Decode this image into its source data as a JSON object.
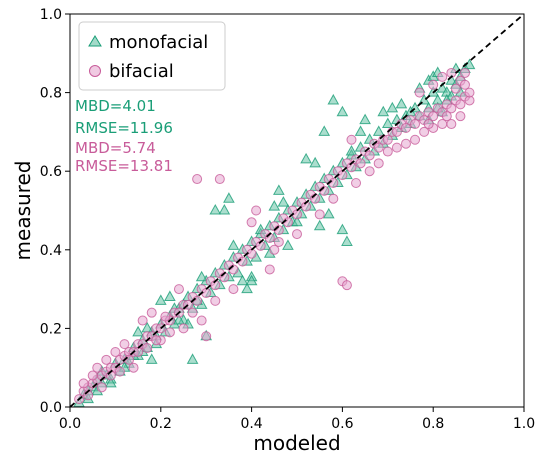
{
  "chart_data": {
    "type": "scatter",
    "title": "",
    "xlabel": "modeled",
    "ylabel": "measured",
    "xlim": [
      0.0,
      1.0
    ],
    "ylim": [
      0.0,
      1.0
    ],
    "xticks": [
      "0.0",
      "0.2",
      "0.4",
      "0.6",
      "0.8",
      "1.0"
    ],
    "yticks": [
      "0.0",
      "0.2",
      "0.4",
      "0.6",
      "0.8",
      "1.0"
    ],
    "grid": false,
    "legend_position": "top-left",
    "reference_line": {
      "style": "dashed",
      "color": "#000000",
      "x": [
        0.0,
        1.0
      ],
      "y": [
        0.0,
        1.0
      ]
    },
    "series": [
      {
        "name": "monofacial",
        "marker": "triangle",
        "color": "#1a9e77",
        "fill": "#66c2a5",
        "points": [
          [
            0.02,
            0.01
          ],
          [
            0.03,
            0.03
          ],
          [
            0.04,
            0.02
          ],
          [
            0.05,
            0.05
          ],
          [
            0.06,
            0.04
          ],
          [
            0.07,
            0.06
          ],
          [
            0.08,
            0.08
          ],
          [
            0.09,
            0.07
          ],
          [
            0.1,
            0.11
          ],
          [
            0.11,
            0.09
          ],
          [
            0.12,
            0.12
          ],
          [
            0.13,
            0.11
          ],
          [
            0.14,
            0.15
          ],
          [
            0.15,
            0.13
          ],
          [
            0.16,
            0.17
          ],
          [
            0.17,
            0.15
          ],
          [
            0.18,
            0.19
          ],
          [
            0.19,
            0.18
          ],
          [
            0.2,
            0.21
          ],
          [
            0.21,
            0.19
          ],
          [
            0.22,
            0.23
          ],
          [
            0.23,
            0.21
          ],
          [
            0.24,
            0.25
          ],
          [
            0.25,
            0.22
          ],
          [
            0.26,
            0.28
          ],
          [
            0.27,
            0.25
          ],
          [
            0.28,
            0.3
          ],
          [
            0.29,
            0.26
          ],
          [
            0.3,
            0.32
          ],
          [
            0.31,
            0.29
          ],
          [
            0.32,
            0.34
          ],
          [
            0.33,
            0.31
          ],
          [
            0.34,
            0.36
          ],
          [
            0.35,
            0.33
          ],
          [
            0.36,
            0.38
          ],
          [
            0.37,
            0.34
          ],
          [
            0.38,
            0.4
          ],
          [
            0.39,
            0.37
          ],
          [
            0.4,
            0.42
          ],
          [
            0.41,
            0.38
          ],
          [
            0.42,
            0.44
          ],
          [
            0.43,
            0.41
          ],
          [
            0.44,
            0.46
          ],
          [
            0.45,
            0.43
          ],
          [
            0.46,
            0.48
          ],
          [
            0.47,
            0.45
          ],
          [
            0.48,
            0.5
          ],
          [
            0.49,
            0.47
          ],
          [
            0.5,
            0.52
          ],
          [
            0.51,
            0.49
          ],
          [
            0.52,
            0.54
          ],
          [
            0.53,
            0.51
          ],
          [
            0.54,
            0.56
          ],
          [
            0.55,
            0.53
          ],
          [
            0.56,
            0.58
          ],
          [
            0.57,
            0.55
          ],
          [
            0.58,
            0.6
          ],
          [
            0.59,
            0.57
          ],
          [
            0.6,
            0.62
          ],
          [
            0.61,
            0.59
          ],
          [
            0.62,
            0.64
          ],
          [
            0.63,
            0.61
          ],
          [
            0.64,
            0.66
          ],
          [
            0.65,
            0.63
          ],
          [
            0.66,
            0.68
          ],
          [
            0.67,
            0.65
          ],
          [
            0.68,
            0.7
          ],
          [
            0.69,
            0.67
          ],
          [
            0.7,
            0.72
          ],
          [
            0.71,
            0.69
          ],
          [
            0.72,
            0.73
          ],
          [
            0.73,
            0.71
          ],
          [
            0.74,
            0.74
          ],
          [
            0.75,
            0.72
          ],
          [
            0.76,
            0.76
          ],
          [
            0.77,
            0.74
          ],
          [
            0.78,
            0.78
          ],
          [
            0.79,
            0.76
          ],
          [
            0.8,
            0.8
          ],
          [
            0.81,
            0.78
          ],
          [
            0.82,
            0.81
          ],
          [
            0.83,
            0.8
          ],
          [
            0.84,
            0.83
          ],
          [
            0.85,
            0.82
          ],
          [
            0.86,
            0.84
          ],
          [
            0.87,
            0.86
          ],
          [
            0.88,
            0.87
          ],
          [
            0.86,
            0.8
          ],
          [
            0.84,
            0.79
          ],
          [
            0.82,
            0.75
          ],
          [
            0.58,
            0.78
          ],
          [
            0.6,
            0.75
          ],
          [
            0.54,
            0.62
          ],
          [
            0.56,
            0.7
          ],
          [
            0.35,
            0.53
          ],
          [
            0.34,
            0.5
          ],
          [
            0.32,
            0.5
          ],
          [
            0.47,
            0.52
          ],
          [
            0.6,
            0.45
          ],
          [
            0.61,
            0.42
          ],
          [
            0.62,
            0.65
          ],
          [
            0.52,
            0.63
          ],
          [
            0.2,
            0.27
          ],
          [
            0.18,
            0.12
          ],
          [
            0.3,
            0.18
          ],
          [
            0.29,
            0.33
          ],
          [
            0.4,
            0.33
          ],
          [
            0.42,
            0.45
          ],
          [
            0.45,
            0.51
          ],
          [
            0.46,
            0.55
          ],
          [
            0.69,
            0.75
          ],
          [
            0.71,
            0.76
          ],
          [
            0.73,
            0.77
          ],
          [
            0.75,
            0.75
          ],
          [
            0.65,
            0.73
          ],
          [
            0.64,
            0.7
          ],
          [
            0.26,
            0.21
          ],
          [
            0.38,
            0.32
          ],
          [
            0.36,
            0.41
          ],
          [
            0.44,
            0.39
          ],
          [
            0.5,
            0.47
          ],
          [
            0.48,
            0.41
          ],
          [
            0.55,
            0.46
          ],
          [
            0.57,
            0.49
          ],
          [
            0.27,
            0.12
          ],
          [
            0.39,
            0.3
          ],
          [
            0.4,
            0.32
          ],
          [
            0.17,
            0.2
          ],
          [
            0.15,
            0.19
          ],
          [
            0.09,
            0.06
          ],
          [
            0.77,
            0.81
          ],
          [
            0.79,
            0.83
          ],
          [
            0.8,
            0.84
          ],
          [
            0.81,
            0.85
          ],
          [
            0.85,
            0.86
          ],
          [
            0.83,
            0.78
          ],
          [
            0.81,
            0.76
          ],
          [
            0.79,
            0.73
          ],
          [
            0.22,
            0.28
          ],
          [
            0.23,
            0.25
          ],
          [
            0.06,
            0.07
          ],
          [
            0.04,
            0.04
          ],
          [
            0.07,
            0.09
          ],
          [
            0.12,
            0.1
          ],
          [
            0.14,
            0.13
          ],
          [
            0.16,
            0.14
          ],
          [
            0.19,
            0.16
          ],
          [
            0.24,
            0.22
          ],
          [
            0.25,
            0.26
          ],
          [
            0.28,
            0.27
          ]
        ]
      },
      {
        "name": "bifacial",
        "marker": "circle",
        "color": "#c85c9a",
        "fill": "#e6a6cf",
        "points": [
          [
            0.02,
            0.02
          ],
          [
            0.03,
            0.04
          ],
          [
            0.04,
            0.05
          ],
          [
            0.05,
            0.06
          ],
          [
            0.06,
            0.07
          ],
          [
            0.07,
            0.08
          ],
          [
            0.08,
            0.09
          ],
          [
            0.09,
            0.1
          ],
          [
            0.1,
            0.1
          ],
          [
            0.11,
            0.12
          ],
          [
            0.12,
            0.13
          ],
          [
            0.13,
            0.14
          ],
          [
            0.14,
            0.14
          ],
          [
            0.15,
            0.16
          ],
          [
            0.16,
            0.16
          ],
          [
            0.17,
            0.18
          ],
          [
            0.18,
            0.18
          ],
          [
            0.19,
            0.2
          ],
          [
            0.2,
            0.2
          ],
          [
            0.21,
            0.22
          ],
          [
            0.22,
            0.22
          ],
          [
            0.23,
            0.24
          ],
          [
            0.24,
            0.24
          ],
          [
            0.25,
            0.26
          ],
          [
            0.26,
            0.26
          ],
          [
            0.27,
            0.28
          ],
          [
            0.28,
            0.27
          ],
          [
            0.29,
            0.3
          ],
          [
            0.3,
            0.29
          ],
          [
            0.31,
            0.32
          ],
          [
            0.32,
            0.31
          ],
          [
            0.33,
            0.34
          ],
          [
            0.34,
            0.33
          ],
          [
            0.35,
            0.36
          ],
          [
            0.36,
            0.35
          ],
          [
            0.37,
            0.38
          ],
          [
            0.38,
            0.37
          ],
          [
            0.39,
            0.4
          ],
          [
            0.4,
            0.39
          ],
          [
            0.41,
            0.42
          ],
          [
            0.42,
            0.41
          ],
          [
            0.43,
            0.44
          ],
          [
            0.44,
            0.43
          ],
          [
            0.45,
            0.46
          ],
          [
            0.46,
            0.45
          ],
          [
            0.47,
            0.48
          ],
          [
            0.48,
            0.47
          ],
          [
            0.49,
            0.5
          ],
          [
            0.5,
            0.49
          ],
          [
            0.51,
            0.52
          ],
          [
            0.52,
            0.51
          ],
          [
            0.53,
            0.54
          ],
          [
            0.54,
            0.53
          ],
          [
            0.55,
            0.56
          ],
          [
            0.56,
            0.55
          ],
          [
            0.57,
            0.58
          ],
          [
            0.58,
            0.57
          ],
          [
            0.59,
            0.6
          ],
          [
            0.6,
            0.59
          ],
          [
            0.61,
            0.62
          ],
          [
            0.62,
            0.61
          ],
          [
            0.63,
            0.63
          ],
          [
            0.64,
            0.62
          ],
          [
            0.65,
            0.65
          ],
          [
            0.66,
            0.64
          ],
          [
            0.67,
            0.67
          ],
          [
            0.68,
            0.66
          ],
          [
            0.69,
            0.68
          ],
          [
            0.7,
            0.68
          ],
          [
            0.71,
            0.7
          ],
          [
            0.72,
            0.7
          ],
          [
            0.73,
            0.72
          ],
          [
            0.74,
            0.71
          ],
          [
            0.75,
            0.73
          ],
          [
            0.76,
            0.72
          ],
          [
            0.77,
            0.74
          ],
          [
            0.78,
            0.73
          ],
          [
            0.79,
            0.75
          ],
          [
            0.8,
            0.74
          ],
          [
            0.81,
            0.76
          ],
          [
            0.82,
            0.75
          ],
          [
            0.83,
            0.77
          ],
          [
            0.84,
            0.76
          ],
          [
            0.85,
            0.78
          ],
          [
            0.86,
            0.77
          ],
          [
            0.87,
            0.79
          ],
          [
            0.88,
            0.78
          ],
          [
            0.86,
            0.74
          ],
          [
            0.84,
            0.72
          ],
          [
            0.85,
            0.81
          ],
          [
            0.86,
            0.83
          ],
          [
            0.84,
            0.85
          ],
          [
            0.87,
            0.82
          ],
          [
            0.82,
            0.72
          ],
          [
            0.88,
            0.8
          ],
          [
            0.8,
            0.71
          ],
          [
            0.78,
            0.7
          ],
          [
            0.76,
            0.68
          ],
          [
            0.7,
            0.65
          ],
          [
            0.68,
            0.62
          ],
          [
            0.28,
            0.58
          ],
          [
            0.33,
            0.58
          ],
          [
            0.62,
            0.68
          ],
          [
            0.6,
            0.32
          ],
          [
            0.61,
            0.31
          ],
          [
            0.3,
            0.18
          ],
          [
            0.4,
            0.47
          ],
          [
            0.41,
            0.5
          ],
          [
            0.18,
            0.24
          ],
          [
            0.16,
            0.22
          ],
          [
            0.12,
            0.16
          ],
          [
            0.1,
            0.14
          ],
          [
            0.08,
            0.12
          ],
          [
            0.06,
            0.1
          ],
          [
            0.05,
            0.08
          ],
          [
            0.03,
            0.06
          ],
          [
            0.2,
            0.17
          ],
          [
            0.25,
            0.2
          ],
          [
            0.29,
            0.22
          ],
          [
            0.36,
            0.3
          ],
          [
            0.45,
            0.4
          ],
          [
            0.5,
            0.44
          ],
          [
            0.55,
            0.49
          ],
          [
            0.58,
            0.53
          ],
          [
            0.63,
            0.57
          ],
          [
            0.66,
            0.6
          ],
          [
            0.72,
            0.66
          ],
          [
            0.74,
            0.67
          ],
          [
            0.79,
            0.72
          ],
          [
            0.83,
            0.74
          ],
          [
            0.87,
            0.85
          ],
          [
            0.82,
            0.84
          ],
          [
            0.8,
            0.82
          ],
          [
            0.77,
            0.8
          ],
          [
            0.46,
            0.42
          ],
          [
            0.44,
            0.35
          ],
          [
            0.22,
            0.19
          ],
          [
            0.14,
            0.1
          ],
          [
            0.24,
            0.3
          ],
          [
            0.32,
            0.27
          ],
          [
            0.04,
            0.03
          ],
          [
            0.07,
            0.05
          ],
          [
            0.09,
            0.08
          ],
          [
            0.11,
            0.09
          ],
          [
            0.13,
            0.12
          ],
          [
            0.15,
            0.14
          ],
          [
            0.17,
            0.15
          ],
          [
            0.19,
            0.17
          ],
          [
            0.21,
            0.23
          ],
          [
            0.27,
            0.24
          ]
        ]
      }
    ],
    "annotations": [
      {
        "text": "MBD=4.01",
        "color": "#1a9e77"
      },
      {
        "text": "RMSE=11.96",
        "color": "#1a9e77"
      },
      {
        "text": "MBD=5.74",
        "color": "#c85c9a"
      },
      {
        "text": "RMSE=13.81",
        "color": "#c85c9a"
      }
    ]
  }
}
